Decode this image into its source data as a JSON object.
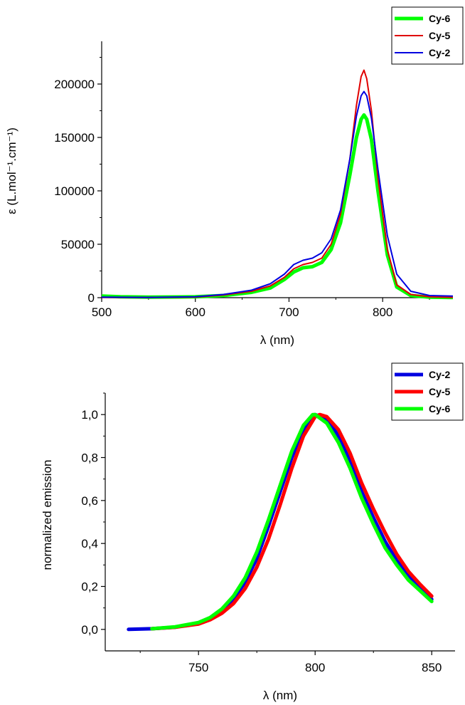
{
  "chart_data": [
    {
      "type": "line",
      "title": "",
      "xlabel": "λ (nm)",
      "ylabel": "ε (L.mol⁻¹.cm⁻¹)",
      "xlim": [
        500,
        875
      ],
      "ylim": [
        0,
        240000
      ],
      "xticks": [
        500,
        600,
        700,
        800
      ],
      "yticks": [
        0,
        50000,
        100000,
        150000,
        200000
      ],
      "ytick_labels": [
        "0",
        "50000",
        "100000",
        "150000",
        "200000"
      ],
      "grid": false,
      "legend_position": "top-right",
      "series": [
        {
          "name": "Cy-6",
          "color": "#00ff00",
          "linewidth": 5,
          "x": [
            500,
            520,
            550,
            600,
            630,
            660,
            680,
            695,
            705,
            715,
            725,
            735,
            745,
            755,
            765,
            772,
            777,
            780,
            783,
            788,
            795,
            805,
            815,
            830,
            850,
            875
          ],
          "y": [
            1500,
            800,
            500,
            800,
            2000,
            5000,
            9000,
            17000,
            24000,
            28000,
            29000,
            33000,
            45000,
            70000,
            115000,
            150000,
            167000,
            171000,
            167000,
            148000,
            100000,
            40000,
            10000,
            2000,
            500,
            200
          ]
        },
        {
          "name": "Cy-5",
          "color": "#e00000",
          "linewidth": 2,
          "x": [
            500,
            550,
            600,
            630,
            660,
            680,
            695,
            705,
            715,
            725,
            735,
            745,
            755,
            765,
            772,
            777,
            780,
            783,
            788,
            795,
            805,
            815,
            830,
            850,
            875
          ],
          "y": [
            300,
            200,
            500,
            2500,
            6000,
            11000,
            19000,
            27000,
            31000,
            33000,
            37000,
            50000,
            78000,
            130000,
            180000,
            207000,
            213000,
            205000,
            175000,
            112000,
            45000,
            12000,
            3000,
            800,
            300
          ]
        },
        {
          "name": "Cy-2",
          "color": "#0000e0",
          "linewidth": 2,
          "x": [
            500,
            550,
            600,
            630,
            660,
            680,
            695,
            705,
            715,
            725,
            735,
            745,
            755,
            765,
            772,
            777,
            780,
            783,
            788,
            795,
            805,
            815,
            830,
            850,
            875
          ],
          "y": [
            500,
            300,
            800,
            3000,
            7000,
            13000,
            22000,
            31000,
            35000,
            37000,
            42000,
            55000,
            82000,
            130000,
            170000,
            189000,
            193000,
            189000,
            168000,
            120000,
            58000,
            22000,
            6000,
            2000,
            1500
          ]
        }
      ]
    },
    {
      "type": "line",
      "title": "",
      "xlabel": "λ (nm)",
      "ylabel": "normalized emission",
      "xlim": [
        710,
        860
      ],
      "ylim": [
        -0.1,
        1.1
      ],
      "xticks": [
        750,
        800,
        850
      ],
      "yticks": [
        0,
        0.2,
        0.4,
        0.6,
        0.8,
        1.0
      ],
      "ytick_labels": [
        "0,0",
        "0,2",
        "0,4",
        "0,6",
        "0,8",
        "1,0"
      ],
      "grid": false,
      "legend_position": "top-right",
      "series": [
        {
          "name": "Cy-2",
          "color": "#0000e0",
          "linewidth": 5,
          "x": [
            720,
            730,
            740,
            750,
            755,
            760,
            765,
            770,
            775,
            780,
            785,
            790,
            795,
            800,
            805,
            810,
            815,
            820,
            825,
            830,
            835,
            840,
            845,
            850
          ],
          "y": [
            0.0,
            0.003,
            0.01,
            0.03,
            0.05,
            0.085,
            0.14,
            0.22,
            0.33,
            0.48,
            0.64,
            0.8,
            0.93,
            1.0,
            0.98,
            0.9,
            0.78,
            0.64,
            0.52,
            0.41,
            0.32,
            0.25,
            0.19,
            0.14
          ]
        },
        {
          "name": "Cy-5",
          "color": "#ff0000",
          "linewidth": 5,
          "x": [
            730,
            740,
            750,
            755,
            760,
            765,
            770,
            775,
            780,
            785,
            790,
            795,
            800,
            802,
            805,
            810,
            815,
            820,
            825,
            830,
            835,
            840,
            845,
            850
          ],
          "y": [
            0.003,
            0.01,
            0.025,
            0.045,
            0.075,
            0.12,
            0.19,
            0.29,
            0.42,
            0.58,
            0.75,
            0.9,
            0.99,
            1.0,
            0.99,
            0.93,
            0.82,
            0.68,
            0.56,
            0.45,
            0.35,
            0.27,
            0.21,
            0.155
          ]
        },
        {
          "name": "Cy-6",
          "color": "#00ff00",
          "linewidth": 5,
          "x": [
            730,
            740,
            750,
            755,
            760,
            765,
            770,
            775,
            780,
            785,
            790,
            795,
            799,
            800,
            805,
            810,
            815,
            820,
            825,
            830,
            835,
            840,
            845,
            850
          ],
          "y": [
            0.003,
            0.012,
            0.032,
            0.055,
            0.095,
            0.155,
            0.24,
            0.36,
            0.51,
            0.67,
            0.83,
            0.95,
            1.0,
            1.0,
            0.96,
            0.87,
            0.75,
            0.61,
            0.49,
            0.38,
            0.3,
            0.23,
            0.18,
            0.13
          ]
        }
      ]
    }
  ]
}
